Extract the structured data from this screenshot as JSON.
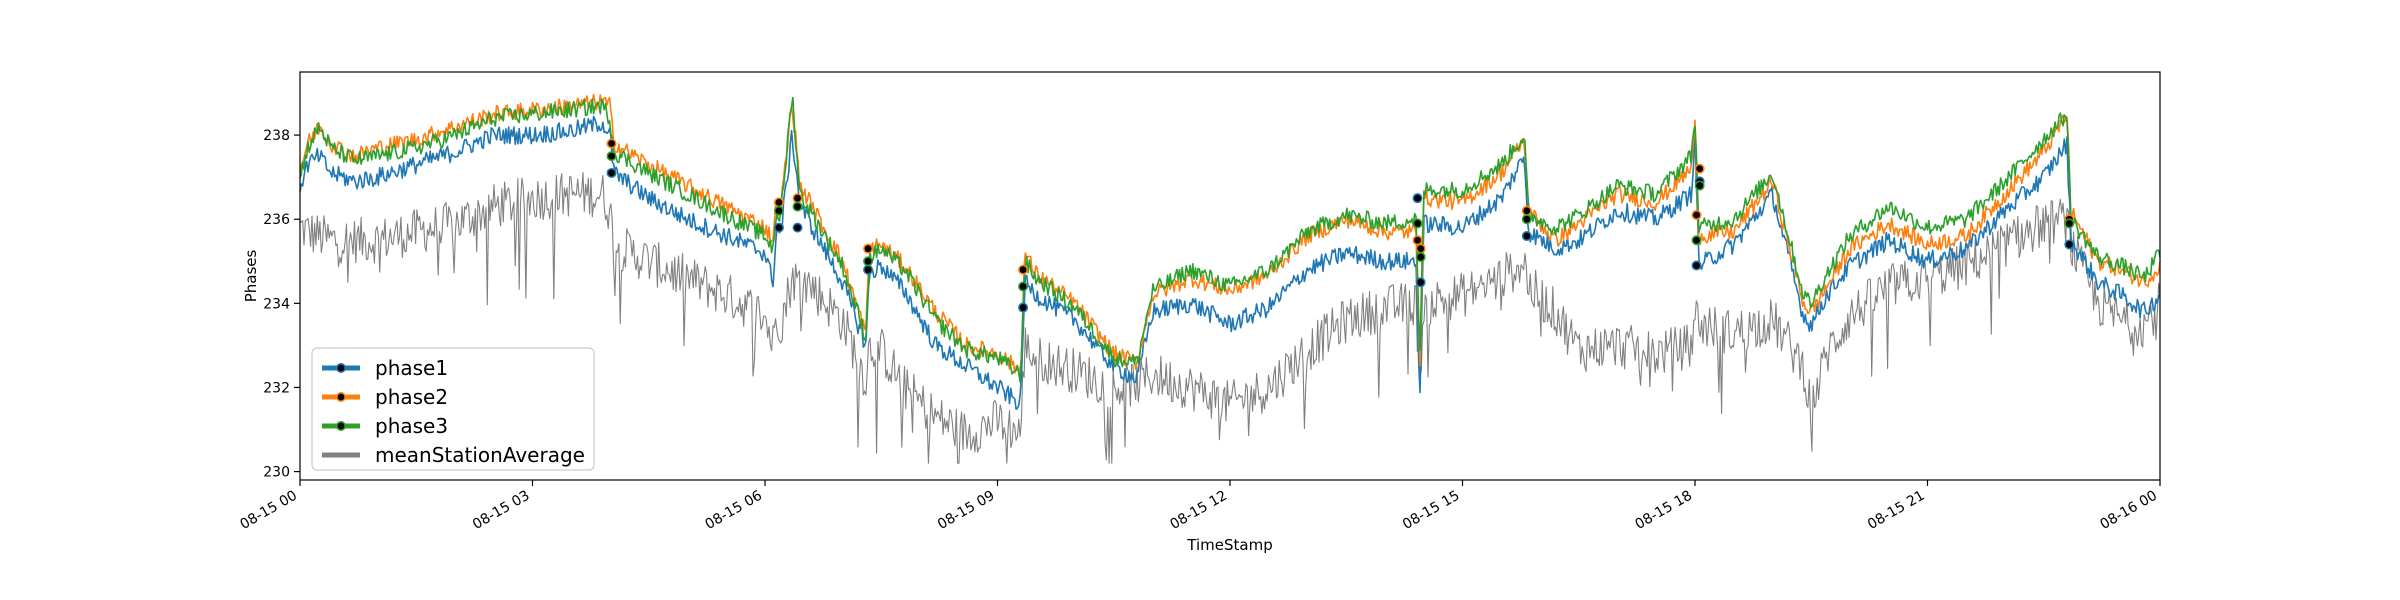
{
  "chart_data": {
    "type": "line",
    "title": "",
    "xlabel": "TimeStamp",
    "ylabel": "Phases",
    "x_range_hours": [
      0,
      24
    ],
    "ylim": [
      229.8,
      239.5
    ],
    "grid": false,
    "legend_placement": "lower-left",
    "x_ticks": [
      {
        "hour": 0,
        "label": "08-15 00"
      },
      {
        "hour": 3,
        "label": "08-15 03"
      },
      {
        "hour": 6,
        "label": "08-15 06"
      },
      {
        "hour": 9,
        "label": "08-15 09"
      },
      {
        "hour": 12,
        "label": "08-15 12"
      },
      {
        "hour": 15,
        "label": "08-15 15"
      },
      {
        "hour": 18,
        "label": "08-15 18"
      },
      {
        "hour": 21,
        "label": "08-15 21"
      },
      {
        "hour": 24,
        "label": "08-16 00"
      }
    ],
    "y_ticks": [
      230,
      232,
      234,
      236,
      238
    ],
    "series": [
      {
        "name": "phase1",
        "color": "#1f77b4",
        "x": [
          0,
          0.1,
          0.25,
          0.4,
          0.7,
          1.0,
          1.5,
          2.0,
          2.5,
          3.0,
          3.5,
          3.9,
          4.0,
          4.05,
          4.5,
          5.0,
          5.5,
          6.0,
          6.1,
          6.15,
          6.2,
          6.35,
          6.45,
          6.55,
          7.0,
          7.3,
          7.35,
          7.5,
          7.8,
          8.2,
          8.6,
          9.0,
          9.3,
          9.35,
          9.5,
          10.0,
          10.5,
          10.8,
          11.0,
          11.5,
          12.0,
          12.5,
          13.0,
          13.5,
          14.0,
          14.4,
          14.45,
          14.5,
          15.0,
          15.5,
          15.8,
          15.85,
          16.2,
          16.5,
          17.0,
          17.5,
          17.95,
          18.0,
          18.05,
          18.5,
          19.0,
          19.4,
          19.5,
          19.7,
          20.0,
          20.5,
          21.0,
          21.5,
          22.0,
          22.5,
          22.8,
          22.85,
          23.2,
          23.5,
          23.8,
          24.0
        ],
        "y": [
          236.8,
          237.3,
          237.5,
          237.1,
          236.9,
          237.0,
          237.3,
          237.6,
          238.0,
          238.0,
          238.1,
          238.3,
          238.0,
          237.1,
          236.5,
          236.0,
          235.6,
          235.2,
          234.5,
          235.8,
          235.6,
          238.0,
          236.4,
          236.0,
          234.5,
          233.0,
          234.7,
          234.9,
          234.3,
          233.0,
          232.5,
          232.0,
          231.6,
          234.5,
          234.2,
          233.6,
          232.5,
          232.2,
          233.8,
          234.0,
          233.5,
          233.9,
          234.8,
          235.2,
          235.0,
          235.0,
          231.8,
          235.9,
          235.8,
          236.5,
          237.5,
          235.7,
          235.3,
          235.5,
          236.2,
          236.0,
          236.6,
          238.0,
          234.9,
          235.4,
          236.6,
          233.7,
          233.5,
          234.2,
          234.9,
          235.5,
          235.0,
          235.3,
          236.2,
          237.0,
          237.8,
          235.5,
          234.5,
          234.2,
          233.8,
          234.2
        ]
      },
      {
        "name": "phase2",
        "color": "#ff7f0e",
        "x": [
          0,
          0.1,
          0.25,
          0.4,
          0.7,
          1.0,
          1.5,
          2.0,
          2.5,
          3.0,
          3.5,
          3.9,
          4.0,
          4.05,
          4.5,
          5.0,
          5.5,
          6.0,
          6.1,
          6.15,
          6.2,
          6.35,
          6.45,
          6.55,
          7.0,
          7.3,
          7.35,
          7.5,
          7.8,
          8.2,
          8.6,
          9.0,
          9.3,
          9.35,
          9.5,
          10.0,
          10.5,
          10.8,
          11.0,
          11.5,
          12.0,
          12.5,
          13.0,
          13.5,
          14.0,
          14.4,
          14.45,
          14.5,
          15.0,
          15.5,
          15.8,
          15.85,
          16.2,
          16.5,
          17.0,
          17.5,
          17.95,
          18.0,
          18.05,
          18.5,
          19.0,
          19.4,
          19.5,
          19.7,
          20.0,
          20.5,
          21.0,
          21.5,
          22.0,
          22.5,
          22.8,
          22.85,
          23.2,
          23.5,
          23.8,
          24.0
        ],
        "y": [
          237.2,
          237.8,
          238.2,
          237.8,
          237.5,
          237.7,
          237.9,
          238.2,
          238.5,
          238.6,
          238.7,
          238.8,
          238.7,
          237.8,
          237.3,
          236.8,
          236.3,
          235.8,
          235.5,
          236.4,
          236.2,
          238.8,
          236.8,
          236.5,
          235.0,
          233.3,
          235.3,
          235.4,
          234.9,
          233.8,
          233.0,
          232.8,
          232.4,
          235.2,
          234.7,
          234.0,
          232.8,
          232.6,
          234.2,
          234.6,
          234.3,
          234.7,
          235.6,
          236.0,
          235.7,
          235.7,
          232.6,
          236.5,
          236.4,
          237.1,
          237.9,
          236.2,
          235.5,
          235.9,
          236.6,
          236.4,
          237.2,
          238.2,
          235.6,
          235.7,
          236.9,
          234.0,
          233.8,
          234.4,
          235.3,
          235.9,
          235.4,
          235.6,
          236.6,
          237.6,
          238.5,
          236.2,
          235.0,
          234.8,
          234.5,
          234.9
        ]
      },
      {
        "name": "phase3",
        "color": "#2ca02c",
        "x": [
          0,
          0.1,
          0.25,
          0.4,
          0.7,
          1.0,
          1.5,
          2.0,
          2.5,
          3.0,
          3.5,
          3.9,
          4.0,
          4.05,
          4.5,
          5.0,
          5.5,
          6.0,
          6.1,
          6.15,
          6.2,
          6.35,
          6.45,
          6.55,
          7.0,
          7.3,
          7.35,
          7.5,
          7.8,
          8.2,
          8.6,
          9.0,
          9.3,
          9.35,
          9.5,
          10.0,
          10.5,
          10.8,
          11.0,
          11.5,
          12.0,
          12.5,
          13.0,
          13.5,
          14.0,
          14.4,
          14.45,
          14.5,
          15.0,
          15.5,
          15.8,
          15.85,
          16.2,
          16.5,
          17.0,
          17.5,
          17.95,
          18.0,
          18.05,
          18.5,
          19.0,
          19.4,
          19.5,
          19.7,
          20.0,
          20.5,
          21.0,
          21.5,
          22.0,
          22.5,
          22.8,
          22.85,
          23.2,
          23.5,
          23.8,
          24.0
        ],
        "y": [
          237.0,
          237.7,
          238.2,
          237.7,
          237.4,
          237.5,
          237.7,
          238.0,
          238.4,
          238.5,
          238.6,
          238.7,
          238.4,
          237.6,
          237.1,
          236.6,
          236.1,
          235.6,
          235.3,
          236.2,
          236.0,
          239.0,
          236.6,
          236.3,
          234.9,
          233.2,
          235.1,
          235.3,
          234.8,
          233.6,
          232.9,
          232.7,
          232.3,
          235.0,
          234.6,
          233.9,
          232.7,
          232.6,
          234.3,
          234.8,
          234.4,
          234.8,
          235.7,
          236.1,
          235.9,
          236.0,
          232.6,
          236.7,
          236.7,
          237.3,
          238.0,
          236.1,
          235.8,
          236.1,
          236.8,
          236.6,
          237.5,
          238.4,
          235.8,
          236.0,
          237.1,
          234.2,
          234.0,
          234.7,
          235.6,
          236.3,
          235.8,
          236.0,
          236.9,
          237.9,
          238.5,
          236.0,
          235.1,
          234.9,
          234.6,
          235.2
        ]
      },
      {
        "name": "meanStationAverage",
        "color": "#808080",
        "x": [
          0,
          0.1,
          0.25,
          0.4,
          0.7,
          1.0,
          1.5,
          2.0,
          2.5,
          3.0,
          3.5,
          3.9,
          4.0,
          4.05,
          4.5,
          5.0,
          5.5,
          6.0,
          6.1,
          6.15,
          6.2,
          6.35,
          6.45,
          6.55,
          7.0,
          7.3,
          7.35,
          7.5,
          7.8,
          8.2,
          8.6,
          9.0,
          9.3,
          9.35,
          9.5,
          10.0,
          10.5,
          10.8,
          11.0,
          11.5,
          12.0,
          12.5,
          13.0,
          13.5,
          14.0,
          14.4,
          14.45,
          14.5,
          15.0,
          15.5,
          15.8,
          15.85,
          16.2,
          16.5,
          17.0,
          17.5,
          17.95,
          18.0,
          18.05,
          18.5,
          19.0,
          19.4,
          19.5,
          19.7,
          20.0,
          20.5,
          21.0,
          21.5,
          22.0,
          22.5,
          22.8,
          22.85,
          23.2,
          23.5,
          23.8,
          24.0
        ],
        "y": [
          235.8,
          235.7,
          235.6,
          235.5,
          235.5,
          235.5,
          235.7,
          235.9,
          236.3,
          236.5,
          236.6,
          236.6,
          236.2,
          235.4,
          235.0,
          234.6,
          234.2,
          233.7,
          233.0,
          233.8,
          233.5,
          234.6,
          234.5,
          234.5,
          233.6,
          232.2,
          233.0,
          232.9,
          232.0,
          231.3,
          230.9,
          231.2,
          230.9,
          233.0,
          232.7,
          232.4,
          232.0,
          232.1,
          232.3,
          232.0,
          231.6,
          232.0,
          232.9,
          233.6,
          233.9,
          234.0,
          232.2,
          234.0,
          234.2,
          234.6,
          235.0,
          234.4,
          233.8,
          232.9,
          233.0,
          232.8,
          233.0,
          233.8,
          233.5,
          233.3,
          233.6,
          232.5,
          231.5,
          232.8,
          233.7,
          234.4,
          234.6,
          234.9,
          235.4,
          235.9,
          236.0,
          235.4,
          234.0,
          233.6,
          233.5,
          234.0
        ]
      }
    ],
    "markers": [
      {
        "series": "phase1",
        "x": [
          4.02,
          6.18,
          6.42,
          7.33,
          9.33,
          14.42,
          14.46,
          15.83,
          18.02,
          18.06,
          22.83
        ],
        "y": [
          237.1,
          235.8,
          235.8,
          234.8,
          233.9,
          236.5,
          234.5,
          235.6,
          234.9,
          236.9,
          235.4
        ]
      },
      {
        "series": "phase2",
        "x": [
          4.02,
          6.18,
          6.42,
          7.33,
          9.33,
          14.42,
          14.46,
          15.83,
          18.02,
          18.06,
          22.83
        ],
        "y": [
          237.8,
          236.4,
          236.5,
          235.3,
          234.8,
          235.5,
          235.3,
          236.2,
          236.1,
          237.2,
          236.0
        ]
      },
      {
        "series": "phase3",
        "x": [
          4.02,
          6.18,
          6.42,
          7.33,
          9.33,
          14.42,
          14.46,
          15.83,
          18.02,
          18.06,
          22.83
        ],
        "y": [
          237.5,
          236.2,
          236.3,
          235.0,
          234.4,
          235.9,
          235.1,
          236.0,
          235.5,
          236.8,
          235.9
        ]
      }
    ]
  }
}
